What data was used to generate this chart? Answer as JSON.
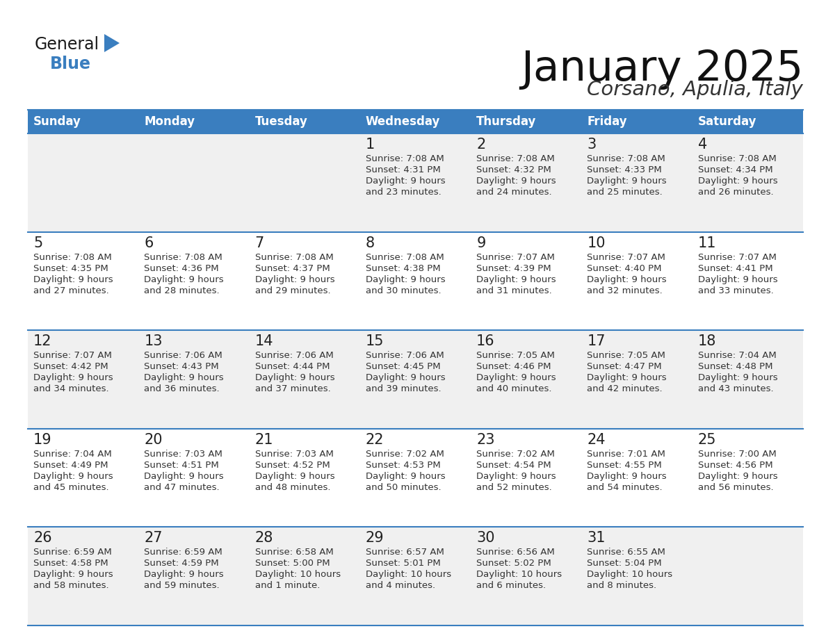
{
  "title": "January 2025",
  "subtitle": "Corsano, Apulia, Italy",
  "header_color": "#3a7ebf",
  "header_text_color": "#ffffff",
  "cell_bg_even": "#f0f0f0",
  "cell_bg_odd": "#ffffff",
  "line_color": "#3a7ebf",
  "text_color": "#333333",
  "day_headers": [
    "Sunday",
    "Monday",
    "Tuesday",
    "Wednesday",
    "Thursday",
    "Friday",
    "Saturday"
  ],
  "logo_general_color": "#1a1a1a",
  "logo_blue_color": "#3a7ebf",
  "logo_triangle_color": "#3a7ebf",
  "days": [
    {
      "row": 0,
      "col": 3,
      "date": "1",
      "sunrise": "7:08 AM",
      "sunset": "4:31 PM",
      "daylight_line1": "Daylight: 9 hours",
      "daylight_line2": "and 23 minutes."
    },
    {
      "row": 0,
      "col": 4,
      "date": "2",
      "sunrise": "7:08 AM",
      "sunset": "4:32 PM",
      "daylight_line1": "Daylight: 9 hours",
      "daylight_line2": "and 24 minutes."
    },
    {
      "row": 0,
      "col": 5,
      "date": "3",
      "sunrise": "7:08 AM",
      "sunset": "4:33 PM",
      "daylight_line1": "Daylight: 9 hours",
      "daylight_line2": "and 25 minutes."
    },
    {
      "row": 0,
      "col": 6,
      "date": "4",
      "sunrise": "7:08 AM",
      "sunset": "4:34 PM",
      "daylight_line1": "Daylight: 9 hours",
      "daylight_line2": "and 26 minutes."
    },
    {
      "row": 1,
      "col": 0,
      "date": "5",
      "sunrise": "7:08 AM",
      "sunset": "4:35 PM",
      "daylight_line1": "Daylight: 9 hours",
      "daylight_line2": "and 27 minutes."
    },
    {
      "row": 1,
      "col": 1,
      "date": "6",
      "sunrise": "7:08 AM",
      "sunset": "4:36 PM",
      "daylight_line1": "Daylight: 9 hours",
      "daylight_line2": "and 28 minutes."
    },
    {
      "row": 1,
      "col": 2,
      "date": "7",
      "sunrise": "7:08 AM",
      "sunset": "4:37 PM",
      "daylight_line1": "Daylight: 9 hours",
      "daylight_line2": "and 29 minutes."
    },
    {
      "row": 1,
      "col": 3,
      "date": "8",
      "sunrise": "7:08 AM",
      "sunset": "4:38 PM",
      "daylight_line1": "Daylight: 9 hours",
      "daylight_line2": "and 30 minutes."
    },
    {
      "row": 1,
      "col": 4,
      "date": "9",
      "sunrise": "7:07 AM",
      "sunset": "4:39 PM",
      "daylight_line1": "Daylight: 9 hours",
      "daylight_line2": "and 31 minutes."
    },
    {
      "row": 1,
      "col": 5,
      "date": "10",
      "sunrise": "7:07 AM",
      "sunset": "4:40 PM",
      "daylight_line1": "Daylight: 9 hours",
      "daylight_line2": "and 32 minutes."
    },
    {
      "row": 1,
      "col": 6,
      "date": "11",
      "sunrise": "7:07 AM",
      "sunset": "4:41 PM",
      "daylight_line1": "Daylight: 9 hours",
      "daylight_line2": "and 33 minutes."
    },
    {
      "row": 2,
      "col": 0,
      "date": "12",
      "sunrise": "7:07 AM",
      "sunset": "4:42 PM",
      "daylight_line1": "Daylight: 9 hours",
      "daylight_line2": "and 34 minutes."
    },
    {
      "row": 2,
      "col": 1,
      "date": "13",
      "sunrise": "7:06 AM",
      "sunset": "4:43 PM",
      "daylight_line1": "Daylight: 9 hours",
      "daylight_line2": "and 36 minutes."
    },
    {
      "row": 2,
      "col": 2,
      "date": "14",
      "sunrise": "7:06 AM",
      "sunset": "4:44 PM",
      "daylight_line1": "Daylight: 9 hours",
      "daylight_line2": "and 37 minutes."
    },
    {
      "row": 2,
      "col": 3,
      "date": "15",
      "sunrise": "7:06 AM",
      "sunset": "4:45 PM",
      "daylight_line1": "Daylight: 9 hours",
      "daylight_line2": "and 39 minutes."
    },
    {
      "row": 2,
      "col": 4,
      "date": "16",
      "sunrise": "7:05 AM",
      "sunset": "4:46 PM",
      "daylight_line1": "Daylight: 9 hours",
      "daylight_line2": "and 40 minutes."
    },
    {
      "row": 2,
      "col": 5,
      "date": "17",
      "sunrise": "7:05 AM",
      "sunset": "4:47 PM",
      "daylight_line1": "Daylight: 9 hours",
      "daylight_line2": "and 42 minutes."
    },
    {
      "row": 2,
      "col": 6,
      "date": "18",
      "sunrise": "7:04 AM",
      "sunset": "4:48 PM",
      "daylight_line1": "Daylight: 9 hours",
      "daylight_line2": "and 43 minutes."
    },
    {
      "row": 3,
      "col": 0,
      "date": "19",
      "sunrise": "7:04 AM",
      "sunset": "4:49 PM",
      "daylight_line1": "Daylight: 9 hours",
      "daylight_line2": "and 45 minutes."
    },
    {
      "row": 3,
      "col": 1,
      "date": "20",
      "sunrise": "7:03 AM",
      "sunset": "4:51 PM",
      "daylight_line1": "Daylight: 9 hours",
      "daylight_line2": "and 47 minutes."
    },
    {
      "row": 3,
      "col": 2,
      "date": "21",
      "sunrise": "7:03 AM",
      "sunset": "4:52 PM",
      "daylight_line1": "Daylight: 9 hours",
      "daylight_line2": "and 48 minutes."
    },
    {
      "row": 3,
      "col": 3,
      "date": "22",
      "sunrise": "7:02 AM",
      "sunset": "4:53 PM",
      "daylight_line1": "Daylight: 9 hours",
      "daylight_line2": "and 50 minutes."
    },
    {
      "row": 3,
      "col": 4,
      "date": "23",
      "sunrise": "7:02 AM",
      "sunset": "4:54 PM",
      "daylight_line1": "Daylight: 9 hours",
      "daylight_line2": "and 52 minutes."
    },
    {
      "row": 3,
      "col": 5,
      "date": "24",
      "sunrise": "7:01 AM",
      "sunset": "4:55 PM",
      "daylight_line1": "Daylight: 9 hours",
      "daylight_line2": "and 54 minutes."
    },
    {
      "row": 3,
      "col": 6,
      "date": "25",
      "sunrise": "7:00 AM",
      "sunset": "4:56 PM",
      "daylight_line1": "Daylight: 9 hours",
      "daylight_line2": "and 56 minutes."
    },
    {
      "row": 4,
      "col": 0,
      "date": "26",
      "sunrise": "6:59 AM",
      "sunset": "4:58 PM",
      "daylight_line1": "Daylight: 9 hours",
      "daylight_line2": "and 58 minutes."
    },
    {
      "row": 4,
      "col": 1,
      "date": "27",
      "sunrise": "6:59 AM",
      "sunset": "4:59 PM",
      "daylight_line1": "Daylight: 9 hours",
      "daylight_line2": "and 59 minutes."
    },
    {
      "row": 4,
      "col": 2,
      "date": "28",
      "sunrise": "6:58 AM",
      "sunset": "5:00 PM",
      "daylight_line1": "Daylight: 10 hours",
      "daylight_line2": "and 1 minute."
    },
    {
      "row": 4,
      "col": 3,
      "date": "29",
      "sunrise": "6:57 AM",
      "sunset": "5:01 PM",
      "daylight_line1": "Daylight: 10 hours",
      "daylight_line2": "and 4 minutes."
    },
    {
      "row": 4,
      "col": 4,
      "date": "30",
      "sunrise": "6:56 AM",
      "sunset": "5:02 PM",
      "daylight_line1": "Daylight: 10 hours",
      "daylight_line2": "and 6 minutes."
    },
    {
      "row": 4,
      "col": 5,
      "date": "31",
      "sunrise": "6:55 AM",
      "sunset": "5:04 PM",
      "daylight_line1": "Daylight: 10 hours",
      "daylight_line2": "and 8 minutes."
    }
  ]
}
